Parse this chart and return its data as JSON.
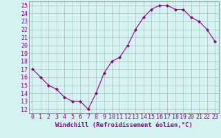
{
  "x": [
    0,
    1,
    2,
    3,
    4,
    5,
    6,
    7,
    8,
    9,
    10,
    11,
    12,
    13,
    14,
    15,
    16,
    17,
    18,
    19,
    20,
    21,
    22,
    23
  ],
  "y": [
    17,
    16,
    15,
    14.5,
    13.5,
    13,
    13,
    12,
    14,
    16.5,
    18,
    18.5,
    20,
    22,
    23.5,
    24.5,
    25,
    25,
    24.5,
    24.5,
    23.5,
    23,
    22,
    20.5
  ],
  "line_color": "#8B008B",
  "marker": "D",
  "marker_size": 2.0,
  "bg_color": "#d5f2f2",
  "grid_color": "#b0b0b0",
  "xlabel": "Windchill (Refroidissement éolien,°C)",
  "xlabel_color": "#8B008B",
  "xlabel_fontsize": 6.5,
  "ylabel_ticks": [
    12,
    13,
    14,
    15,
    16,
    17,
    18,
    19,
    20,
    21,
    22,
    23,
    24,
    25
  ],
  "xlim": [
    -0.5,
    23.5
  ],
  "ylim": [
    11.5,
    25.5
  ],
  "tick_fontsize": 6.0,
  "tick_color": "#8B008B"
}
